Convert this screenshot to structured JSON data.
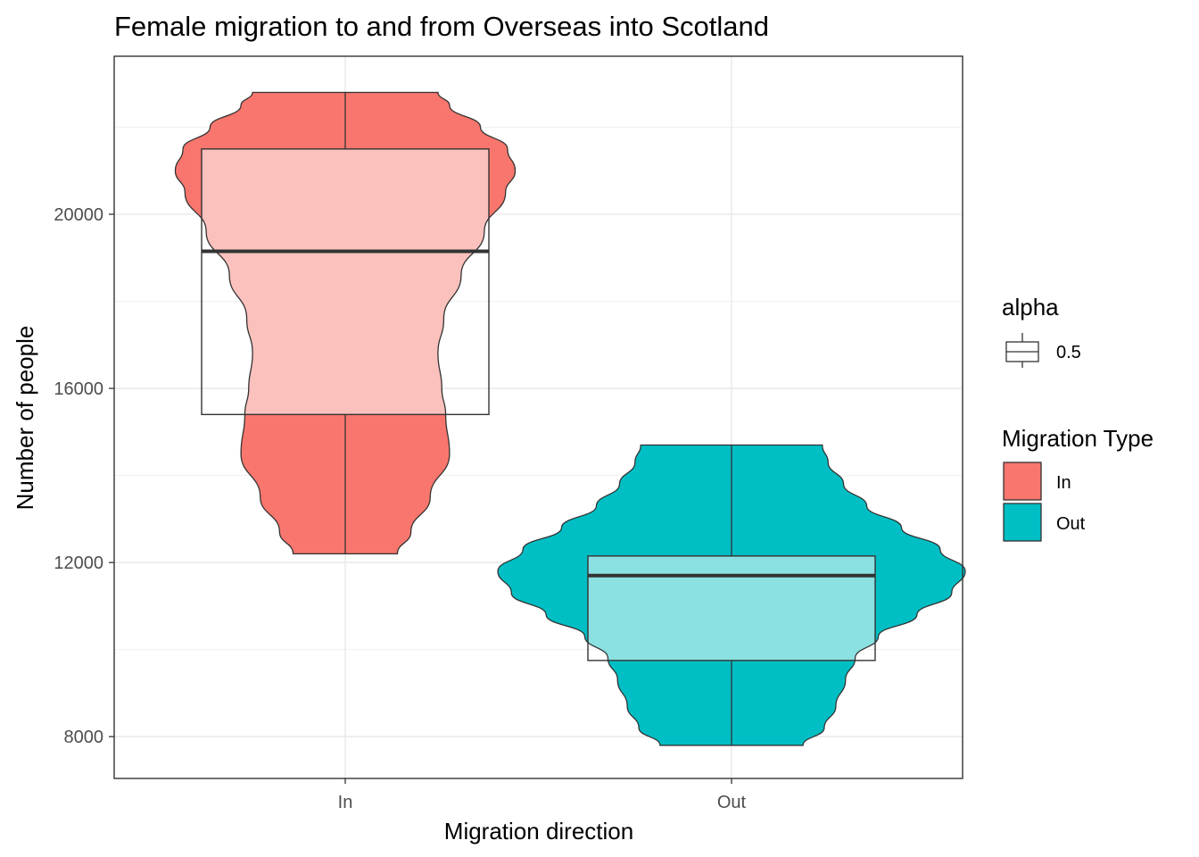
{
  "chart_data": {
    "type": "violin",
    "title": "Female migration to and from Overseas into Scotland",
    "xlabel": "Migration direction",
    "ylabel": "Number of people",
    "categories": [
      "In",
      "Out"
    ],
    "y_ticks": [
      8000,
      12000,
      16000,
      20000
    ],
    "y_tick_labels": [
      "8000",
      "12000",
      "16000",
      "20000"
    ],
    "ylim": [
      7040,
      23630
    ],
    "grid": true,
    "legend_position": "right",
    "series": [
      {
        "name": "In",
        "color": "#F8766D",
        "light_color": "#FBC1BD",
        "violin_min": 12200,
        "violin_max": 22800,
        "density": [
          [
            12200,
            0.135
          ],
          [
            12700,
            0.17
          ],
          [
            13500,
            0.22
          ],
          [
            14500,
            0.27
          ],
          [
            15400,
            0.26
          ],
          [
            16000,
            0.25
          ],
          [
            16800,
            0.24
          ],
          [
            17600,
            0.255
          ],
          [
            18600,
            0.3
          ],
          [
            19600,
            0.36
          ],
          [
            20500,
            0.415
          ],
          [
            21000,
            0.44
          ],
          [
            21500,
            0.42
          ],
          [
            22000,
            0.35
          ],
          [
            22500,
            0.27
          ],
          [
            22800,
            0.24
          ]
        ],
        "box": {
          "q1": 15400,
          "median": 19150,
          "q3": 21500
        }
      },
      {
        "name": "Out",
        "color": "#00BFC4",
        "light_color": "#8BE0E2",
        "violin_min": 7800,
        "violin_max": 14700,
        "density": [
          [
            7800,
            0.185
          ],
          [
            8200,
            0.24
          ],
          [
            8700,
            0.27
          ],
          [
            9300,
            0.295
          ],
          [
            9800,
            0.32
          ],
          [
            10300,
            0.38
          ],
          [
            10800,
            0.48
          ],
          [
            11300,
            0.57
          ],
          [
            11800,
            0.605
          ],
          [
            12300,
            0.54
          ],
          [
            12800,
            0.44
          ],
          [
            13300,
            0.35
          ],
          [
            13800,
            0.29
          ],
          [
            14300,
            0.25
          ],
          [
            14700,
            0.235
          ]
        ],
        "box": {
          "q1": 9750,
          "median": 11700,
          "q3": 12150
        }
      }
    ],
    "legends": [
      {
        "title": "alpha",
        "items": [
          {
            "label": "0.5",
            "key": "box-glyph"
          }
        ]
      },
      {
        "title": "Migration Type",
        "items": [
          {
            "label": "In",
            "color": "#F8766D"
          },
          {
            "label": "Out",
            "color": "#00BFC4"
          }
        ]
      }
    ]
  }
}
